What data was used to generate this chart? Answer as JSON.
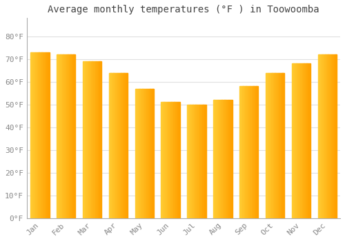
{
  "months": [
    "Jan",
    "Feb",
    "Mar",
    "Apr",
    "May",
    "Jun",
    "Jul",
    "Aug",
    "Sep",
    "Oct",
    "Nov",
    "Dec"
  ],
  "values": [
    73,
    72,
    69,
    64,
    57,
    51,
    50,
    52,
    58,
    64,
    68,
    72
  ],
  "bar_color_left": "#FFCC44",
  "bar_color_right": "#FFA500",
  "background_color": "#FFFFFF",
  "title": "Average monthly temperatures (°F ) in Toowoomba",
  "title_fontsize": 10,
  "ylim": [
    0,
    88
  ],
  "yticks": [
    0,
    10,
    20,
    30,
    40,
    50,
    60,
    70,
    80
  ],
  "ytick_labels": [
    "0°F",
    "10°F",
    "20°F",
    "30°F",
    "40°F",
    "50°F",
    "60°F",
    "70°F",
    "80°F"
  ],
  "grid_color": "#E0E0E0",
  "font_color": "#888888",
  "axis_color": "#AAAAAA"
}
